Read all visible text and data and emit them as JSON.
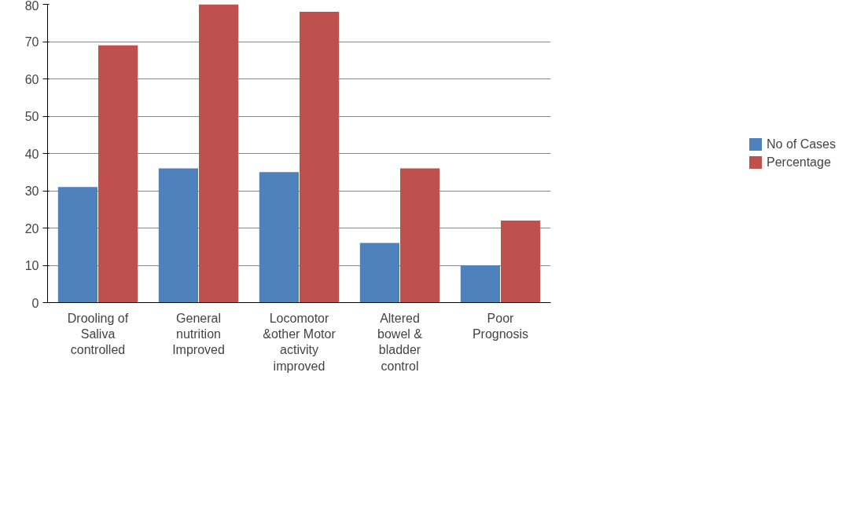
{
  "chart_data": {
    "type": "bar",
    "categories": [
      "Drooling of Saliva controlled",
      "General nutrition Improved",
      "Locomotor &other Motor activity improved",
      "Altered bowel & bladder control",
      "Poor Prognosis"
    ],
    "series": [
      {
        "name": "No of Cases",
        "color": "#4f81bd",
        "values": [
          31,
          36,
          35,
          16,
          10
        ]
      },
      {
        "name": "Percentage",
        "color": "#c0504d",
        "values": [
          69,
          80,
          78,
          36,
          22
        ]
      }
    ],
    "ylim": [
      0,
      80
    ],
    "yticks": [
      0,
      10,
      20,
      30,
      40,
      50,
      60,
      70,
      80
    ],
    "grid": "y",
    "legend": "right"
  }
}
